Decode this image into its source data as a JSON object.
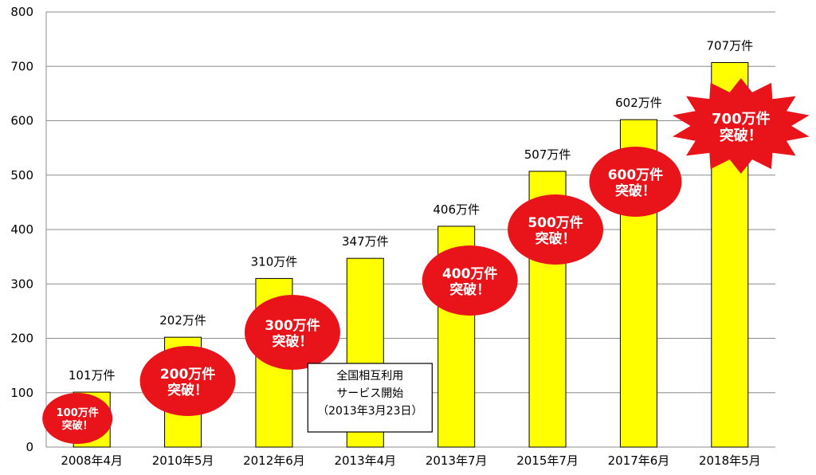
{
  "chart_data": {
    "type": "bar",
    "categories": [
      "2008年4月",
      "2010年5月",
      "2012年6月",
      "2013年4月",
      "2013年7月",
      "2015年7月",
      "2017年6月",
      "2018年5月"
    ],
    "values": [
      101,
      202,
      310,
      347,
      406,
      507,
      602,
      707
    ],
    "value_labels": [
      "101万件",
      "202万件",
      "310万件",
      "347万件",
      "406万件",
      "507万件",
      "602万件",
      "707万件"
    ],
    "ylim": [
      0,
      800
    ],
    "yticks": [
      "0",
      "100",
      "200",
      "300",
      "400",
      "500",
      "600",
      "700",
      "800"
    ],
    "grid": true,
    "bar_color": "#ffff00",
    "badge_color": "#e8141a",
    "badges": [
      {
        "category": "2008年4月",
        "line1": "100万件",
        "line2": "突破！",
        "shape": "ellipse"
      },
      {
        "category": "2010年5月",
        "line1": "200万件",
        "line2": "突破！",
        "shape": "ellipse"
      },
      {
        "category": "2012年6月",
        "line1": "300万件",
        "line2": "突破！",
        "shape": "ellipse"
      },
      {
        "category": "2013年7月",
        "line1": "400万件",
        "line2": "突破！",
        "shape": "ellipse"
      },
      {
        "category": "2015年7月",
        "line1": "500万件",
        "line2": "突破！",
        "shape": "ellipse"
      },
      {
        "category": "2017年6月",
        "line1": "600万件",
        "line2": "突破！",
        "shape": "ellipse"
      },
      {
        "category": "2018年5月",
        "line1": "700万件",
        "line2": "突破！",
        "shape": "starburst"
      }
    ],
    "annotation": {
      "category": "2013年4月",
      "lines": [
        "全国相互利用",
        "サービス開始",
        "（2013年3月23日）"
      ]
    }
  }
}
